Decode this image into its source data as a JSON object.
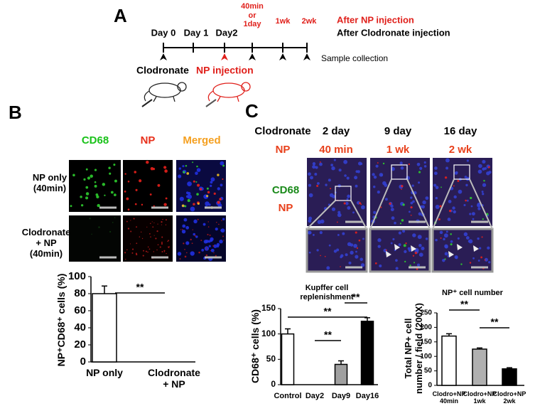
{
  "panel_a": {
    "label": "A",
    "timepoints": [
      "Day 0",
      "Day 1",
      "Day2",
      "40min or 1day",
      "1wk",
      "2wk"
    ],
    "legend": [
      "After NP injection",
      "After Clodronate injection"
    ],
    "sample_collection": "Sample collection",
    "clodronate": "Clodronate",
    "np_injection": "NP injection"
  },
  "panel_b": {
    "label": "B",
    "columns": [
      "CD68",
      "NP",
      "Merged"
    ],
    "rows": [
      "NP only (40min)",
      "Clodronate + NP (40min)"
    ]
  },
  "panel_c": {
    "label": "C",
    "row_headers": [
      "Clodronate",
      "NP"
    ],
    "clodronate_times": [
      "2 day",
      "9 day",
      "16 day"
    ],
    "np_times": [
      "40 min",
      "1 wk",
      "2 wk"
    ],
    "stain_labels": [
      "CD68",
      "NP"
    ]
  },
  "chart_data": [
    {
      "type": "bar",
      "ylabel": "NP⁺CD68⁺ cells (%)",
      "categories": [
        "NP only",
        "Clodronate + NP"
      ],
      "values": [
        80,
        0
      ],
      "errors": [
        9,
        0
      ],
      "colors": [
        "#ffffff",
        "#ffffff"
      ],
      "ylim": [
        0,
        100
      ],
      "yticks": [
        0,
        20,
        40,
        60,
        80,
        100
      ],
      "annotations": [
        "**"
      ]
    },
    {
      "type": "bar",
      "title": "Kupffer cell replenishment",
      "ylabel": "CD68⁺ cells (%)",
      "categories": [
        "Control",
        "Day2",
        "Day9",
        "Day16"
      ],
      "values": [
        100,
        0,
        40,
        125
      ],
      "errors": [
        10,
        0,
        7,
        7
      ],
      "colors": [
        "#ffffff",
        "#ffffff",
        "#a0a0a0",
        "#000000"
      ],
      "ylim": [
        0,
        150
      ],
      "yticks": [
        0,
        50,
        100,
        150
      ],
      "annotations": [
        "**",
        "**",
        "**"
      ]
    },
    {
      "type": "bar",
      "title": "NP⁺ cell number",
      "ylabel": "Total NP+ cell number / field (200X)",
      "categories": [
        "Clodro+NP 40min",
        "Clodro+NP 1wk",
        "Clodro+NP 2wk"
      ],
      "values": [
        170,
        125,
        57
      ],
      "errors": [
        8,
        4,
        4
      ],
      "colors": [
        "#ffffff",
        "#b0b0b0",
        "#000000"
      ],
      "ylim": [
        0,
        250
      ],
      "yticks": [
        0,
        50,
        100,
        150,
        200,
        250
      ],
      "annotations": [
        "**",
        "**"
      ]
    }
  ]
}
